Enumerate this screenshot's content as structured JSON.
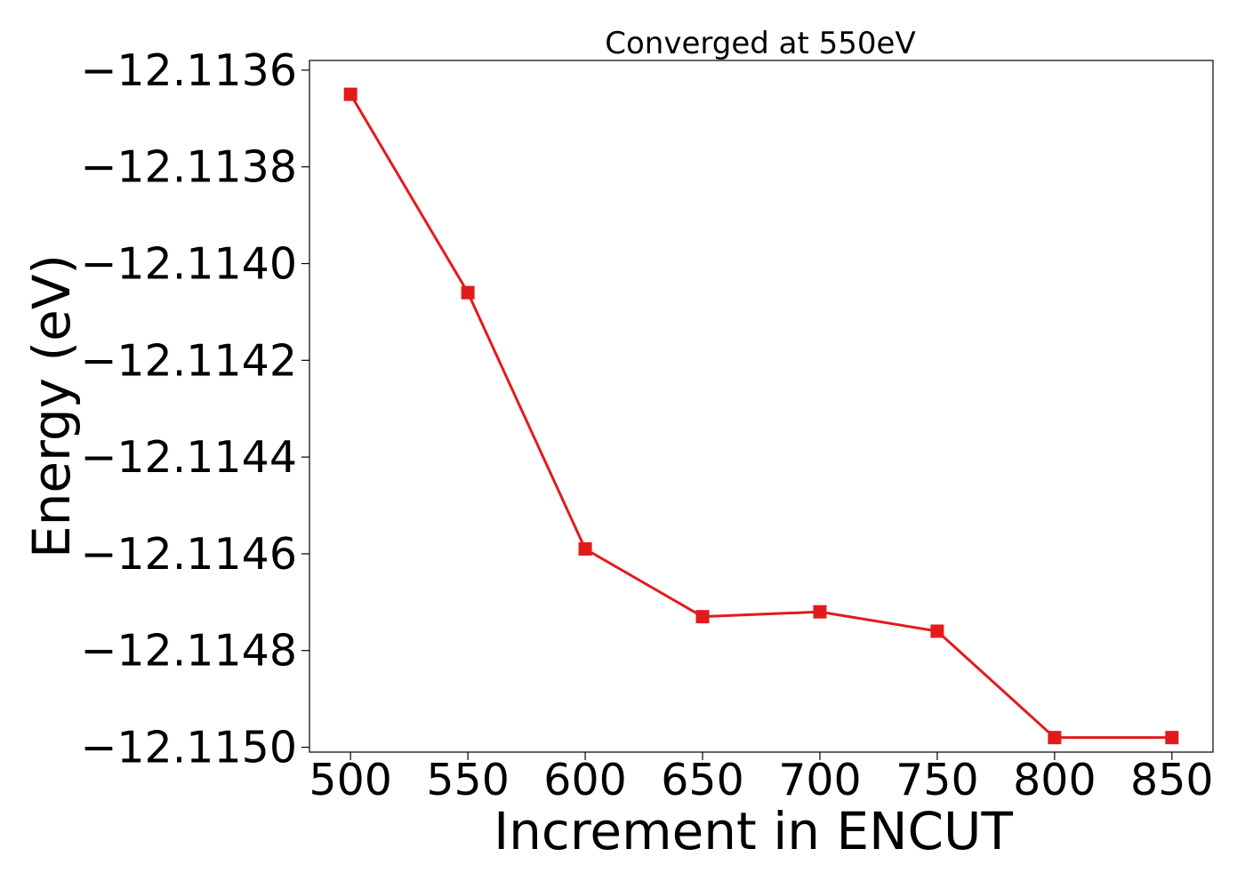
{
  "chart_data": {
    "type": "line",
    "title": "Converged at 550eV",
    "xlabel": "Increment in ENCUT",
    "ylabel": "Energy (eV)",
    "x": [
      500,
      550,
      600,
      650,
      700,
      750,
      800,
      850
    ],
    "series": [
      {
        "values": [
          -12.11365,
          -12.11406,
          -12.11459,
          -12.11473,
          -12.11472,
          -12.11476,
          -12.11498,
          -12.11498
        ],
        "color": "#e31a1c",
        "marker": "square"
      }
    ],
    "xticks": [
      500,
      550,
      600,
      650,
      700,
      750,
      800,
      850
    ],
    "xtick_labels": [
      "500",
      "550",
      "600",
      "650",
      "700",
      "750",
      "800",
      "850"
    ],
    "yticks": [
      -12.1136,
      -12.1138,
      -12.114,
      -12.1142,
      -12.1144,
      -12.1146,
      -12.1148,
      -12.115
    ],
    "ytick_labels": [
      "−12.1136",
      "−12.1138",
      "−12.1140",
      "−12.1142",
      "−12.1144",
      "−12.1146",
      "−12.1148",
      "−12.1150"
    ],
    "xlim": [
      482.5,
      867.5
    ],
    "ylim": [
      -12.11501,
      -12.11358
    ],
    "grid": false,
    "legend": "none"
  }
}
